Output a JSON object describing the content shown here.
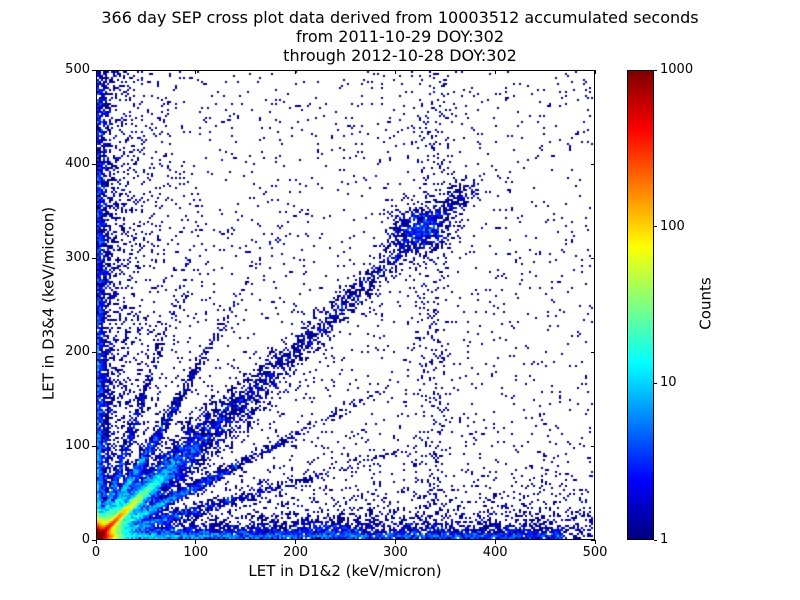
{
  "chart_data": {
    "type": "heatmap",
    "title": "366 day SEP cross plot data derived from 10003512 accumulated seconds",
    "subtitle_lines": [
      "from 2011-10-29 DOY:302",
      "through 2012-10-28 DOY:302"
    ],
    "xlabel": "LET in D1&2 (keV/micron)",
    "ylabel": "LET in D3&4 (keV/micron)",
    "xlim": [
      0,
      500
    ],
    "ylim": [
      0,
      500
    ],
    "xticks": [
      0,
      100,
      200,
      300,
      400,
      500
    ],
    "yticks": [
      0,
      100,
      200,
      300,
      400,
      500
    ],
    "grid": false,
    "background": "#ffffff",
    "frame_color": "#000000",
    "point_color_low": "#00007f",
    "colorbar": {
      "label": "Counts",
      "scale": "log",
      "min": 1,
      "max": 1000,
      "ticks": [
        1,
        10,
        100,
        1000
      ],
      "colormap": "jet"
    },
    "seed": 1337,
    "distribution": {
      "note": "2D histogram of SEP LET coincidence events; hot core at origin, bright diagonal streak, fan rays, bands along both axes, diffuse diagonal band with clump near (325,331), sparse column near x=338, uniform background scatter",
      "components": [
        {
          "kind": "exp2",
          "n": 26000,
          "sx": 4.5,
          "sy": 4.5
        },
        {
          "kind": "diag_exp",
          "n": 16000,
          "scale": 15,
          "spread": 1.2
        },
        {
          "kind": "diag_exp",
          "n": 7000,
          "scale": 42,
          "spread": 4
        },
        {
          "kind": "ray",
          "n": 2400,
          "slope": 0.55,
          "scale": 55,
          "spread": 3
        },
        {
          "kind": "ray",
          "n": 2400,
          "slope": 1.8,
          "scale": 30,
          "spread": 5
        },
        {
          "kind": "ray",
          "n": 1300,
          "slope": 0.3,
          "scale": 70,
          "spread": 3
        },
        {
          "kind": "ray",
          "n": 900,
          "slope": 3.2,
          "scale": 22,
          "spread": 6
        },
        {
          "kind": "axis_x",
          "n": 5200,
          "pow": 2.0,
          "xmax": 470,
          "yscale": 5
        },
        {
          "kind": "axis_y",
          "n": 3400,
          "pow": 2.2,
          "ymax": 500,
          "xscale": 5
        },
        {
          "kind": "diag_band",
          "n": 1700,
          "tmin": 40,
          "tmax": 380,
          "spread": 7
        },
        {
          "kind": "blob",
          "n": 650,
          "cx": 325,
          "cy": 331,
          "sx": 16,
          "sy": 13
        },
        {
          "kind": "blob",
          "n": 200,
          "cx": 243,
          "cy": 10,
          "sx": 22,
          "sy": 7
        },
        {
          "kind": "column",
          "n": 430,
          "cx": 338,
          "sx": 11,
          "ymin": 0,
          "ymax": 500
        },
        {
          "kind": "uniform",
          "n": 1900,
          "xmax": 500,
          "ymax": 500
        },
        {
          "kind": "axis_y",
          "n": 1600,
          "pow": 1.0,
          "ymax": 500,
          "xscale": 28
        },
        {
          "kind": "axis_x",
          "n": 1600,
          "pow": 1.0,
          "xmax": 500,
          "yscale": 28
        }
      ]
    }
  }
}
